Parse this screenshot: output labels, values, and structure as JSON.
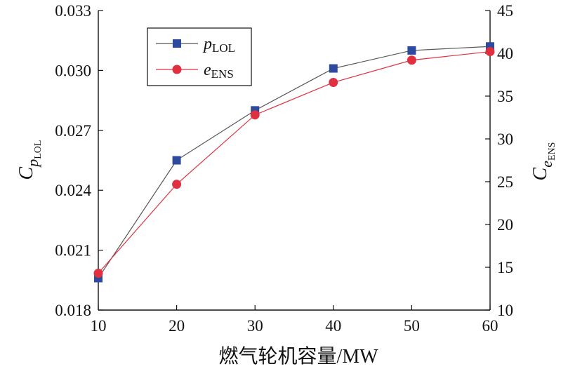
{
  "chart_data": {
    "type": "line",
    "xlabel": "燃气轮机容量/MW",
    "ylabel_left": {
      "main": "C",
      "sub": "p",
      "subsub": "LOL"
    },
    "ylabel_right": {
      "main": "C",
      "sub": "e",
      "subsub": "ENS"
    },
    "xlim": [
      10,
      60
    ],
    "xticks": [
      "10",
      "20",
      "30",
      "40",
      "50",
      "60"
    ],
    "ylim_left": [
      0.018,
      0.033
    ],
    "yticks_left": [
      "0.018",
      "0.021",
      "0.024",
      "0.027",
      "0.030",
      "0.033"
    ],
    "ylim_right": [
      10,
      45
    ],
    "yticks_right": [
      "10",
      "15",
      "20",
      "25",
      "30",
      "35",
      "40",
      "45"
    ],
    "x": [
      10,
      20,
      30,
      40,
      50,
      60
    ],
    "series": [
      {
        "name": {
          "main": "p",
          "sub": "LOL"
        },
        "axis": "left",
        "marker": "square",
        "color": "#2e4a9e",
        "values": [
          0.0196,
          0.0255,
          0.028,
          0.0301,
          0.031,
          0.0312
        ]
      },
      {
        "name": {
          "main": "e",
          "sub": "ENS"
        },
        "axis": "right",
        "marker": "circle",
        "color": "#e03040",
        "values": [
          14.3,
          24.7,
          32.8,
          36.6,
          39.2,
          40.2
        ]
      }
    ],
    "grid": false,
    "legend_position": "top-left"
  }
}
